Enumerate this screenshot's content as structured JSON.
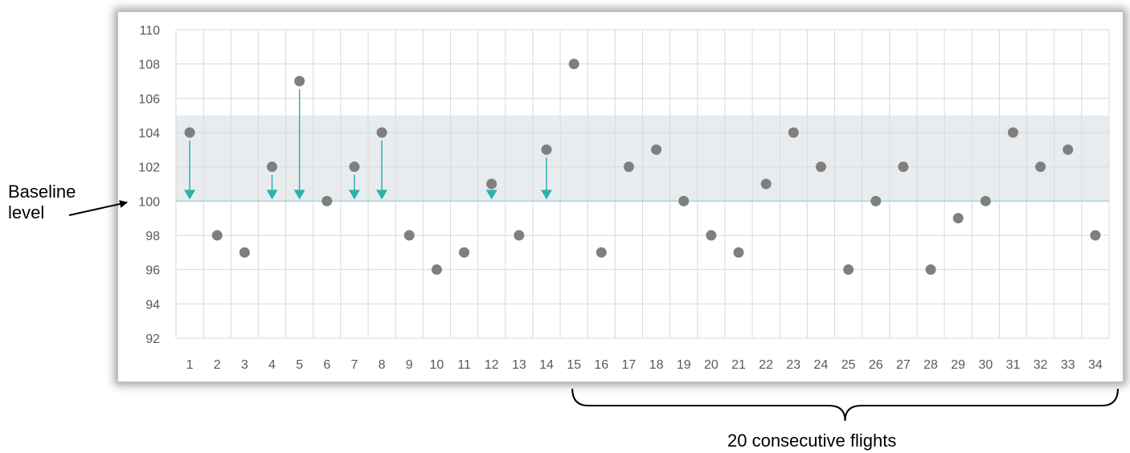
{
  "chart_data": {
    "type": "scatter",
    "x": [
      1,
      2,
      3,
      4,
      5,
      6,
      7,
      8,
      9,
      10,
      11,
      12,
      13,
      14,
      15,
      16,
      17,
      18,
      19,
      20,
      21,
      22,
      23,
      24,
      25,
      26,
      27,
      28,
      29,
      30,
      31,
      32,
      33,
      34
    ],
    "y": [
      104,
      98,
      97,
      102,
      107,
      100,
      102,
      104,
      98,
      96,
      97,
      101,
      98,
      103,
      108,
      97,
      102,
      103,
      100,
      98,
      97,
      101,
      104,
      102,
      96,
      100,
      102,
      96,
      99,
      100,
      104,
      102,
      103,
      98
    ],
    "ylim": [
      92,
      110
    ],
    "yticks": [
      "92",
      "94",
      "96",
      "98",
      "100",
      "102",
      "104",
      "106",
      "108",
      "110"
    ],
    "xticks": [
      "1",
      "2",
      "3",
      "4",
      "5",
      "6",
      "7",
      "8",
      "9",
      "10",
      "11",
      "12",
      "13",
      "14",
      "15",
      "16",
      "17",
      "18",
      "19",
      "20",
      "21",
      "22",
      "23",
      "24",
      "25",
      "26",
      "27",
      "28",
      "29",
      "30",
      "31",
      "32",
      "33",
      "34"
    ],
    "shaded_band": [
      100,
      105
    ],
    "baseline": 100,
    "arrows_from_x": [
      1,
      4,
      5,
      7,
      8,
      12,
      14
    ],
    "grid": true,
    "colors": {
      "marker": "#7f7f7f",
      "arrow": "#2ab3ad",
      "band": "#e9ecef",
      "grid": "#d9d9d9",
      "baseline": "#9fd6d2"
    },
    "annotations": {
      "baseline_label": "Baseline\nlevel",
      "brace_label": "20 consecutive flights",
      "brace_from_x": 15,
      "brace_to_x": 34
    }
  }
}
